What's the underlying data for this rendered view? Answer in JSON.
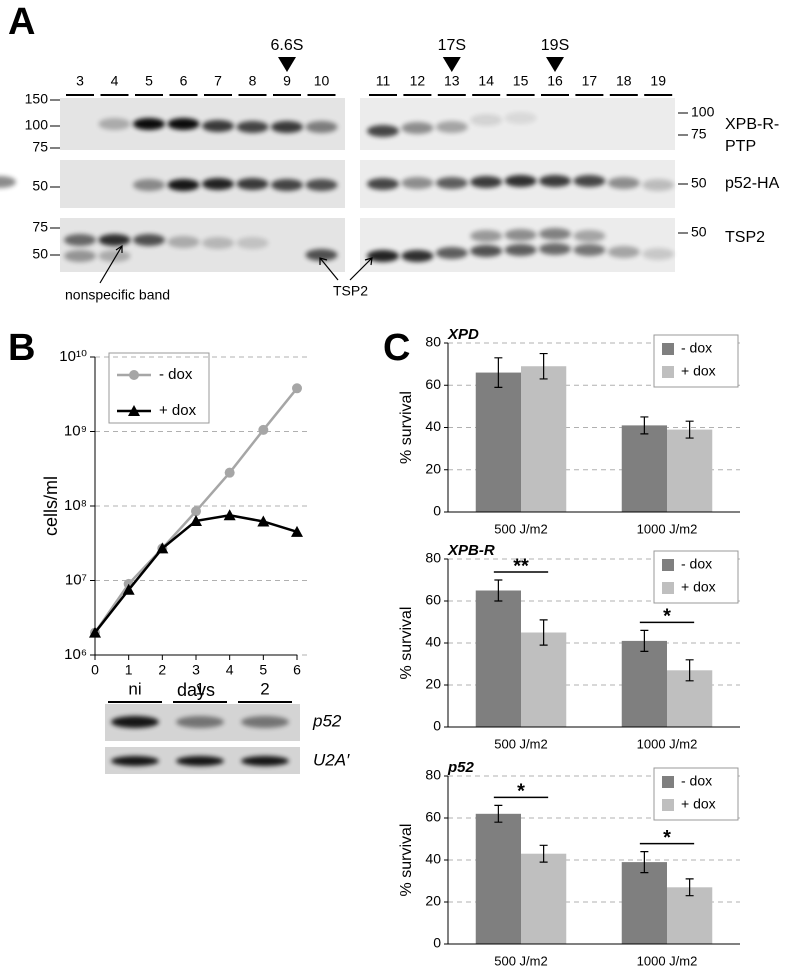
{
  "panel_labels": [
    "A",
    "B",
    "C"
  ],
  "panel_a": {
    "lanes_left": [
      "3",
      "4",
      "5",
      "6",
      "7",
      "8",
      "9",
      "10"
    ],
    "lanes_right": [
      "11",
      "12",
      "13",
      "14",
      "15",
      "16",
      "17",
      "18",
      "19"
    ],
    "sedimentation_markers": [
      "6.6S",
      "17S",
      "19S"
    ],
    "mw_left": [
      [
        "150",
        "100",
        "75"
      ],
      [
        "50"
      ],
      [
        "75",
        "50"
      ]
    ],
    "mw_right": [
      [
        "100",
        "75"
      ],
      [
        "50"
      ],
      [
        "50"
      ]
    ],
    "blot_labels": [
      [
        "XPB-R-",
        "PTP"
      ],
      [
        "p52-HA"
      ],
      [
        "TSP2"
      ]
    ],
    "annotations": [
      "nonspecific band",
      "TSP2"
    ]
  },
  "panel_b_blot": {
    "lanes": [
      "ni",
      "1",
      "2"
    ],
    "labels": [
      "p52",
      "U2A′"
    ]
  },
  "chart_data": [
    {
      "type": "line",
      "xlabel": "days",
      "ylabel": "cells/ml",
      "log_y": true,
      "grid": true,
      "legend": "upper left",
      "x": [
        0,
        1,
        2,
        3,
        4,
        5,
        6
      ],
      "xlim": [
        0,
        6
      ],
      "xticks": [
        0,
        1,
        2,
        3,
        4,
        5,
        6
      ],
      "ylim": [
        1000000,
        10000000000
      ],
      "yticks": [
        {
          "value": 1000000,
          "label": "10⁶"
        },
        {
          "value": 10000000,
          "label": "10⁷"
        },
        {
          "value": 100000000,
          "label": "10⁸"
        },
        {
          "value": 1000000000,
          "label": "10⁹"
        },
        {
          "value": 10000000000,
          "label": "10¹⁰"
        }
      ],
      "series": [
        {
          "name": "- dox",
          "color": "#a6a6a6",
          "marker": "o",
          "values": [
            2000000,
            9000000,
            27000000,
            85000000,
            280000000,
            1050000000,
            3800000000
          ]
        },
        {
          "name": "+ dox",
          "color": "#000000",
          "marker": "^",
          "values": [
            2000000,
            7500000,
            27000000,
            63000000,
            75000000,
            62000000,
            45000000
          ]
        }
      ]
    },
    {
      "type": "bar",
      "title": "XPD",
      "ylabel": "% survival",
      "grid": true,
      "legend": "upper right",
      "categories": [
        "500 J/m2",
        "1000 J/m2"
      ],
      "ylim": [
        0,
        80
      ],
      "yticks": [
        0,
        20,
        40,
        60,
        80
      ],
      "annotations": [
        null,
        null
      ],
      "series": [
        {
          "name": "- dox",
          "color": "#7f7f7f",
          "values": [
            66,
            41
          ],
          "errors": [
            7,
            4
          ]
        },
        {
          "name": "+ dox",
          "color": "#bfbfbf",
          "values": [
            69,
            39
          ],
          "errors": [
            6,
            4
          ]
        }
      ]
    },
    {
      "type": "bar",
      "title": "XPB-R",
      "ylabel": "% survival",
      "grid": true,
      "legend": "upper right",
      "categories": [
        "500 J/m2",
        "1000 J/m2"
      ],
      "ylim": [
        0,
        80
      ],
      "yticks": [
        0,
        20,
        40,
        60,
        80
      ],
      "annotations": [
        "**",
        "*"
      ],
      "series": [
        {
          "name": "- dox",
          "color": "#7f7f7f",
          "values": [
            65,
            41
          ],
          "errors": [
            5,
            5
          ]
        },
        {
          "name": "+ dox",
          "color": "#bfbfbf",
          "values": [
            45,
            27
          ],
          "errors": [
            6,
            5
          ]
        }
      ]
    },
    {
      "type": "bar",
      "title": "p52",
      "ylabel": "% survival",
      "grid": true,
      "legend": "upper right",
      "categories": [
        "500 J/m2",
        "1000 J/m2"
      ],
      "ylim": [
        0,
        80
      ],
      "yticks": [
        0,
        20,
        40,
        60,
        80
      ],
      "annotations": [
        "*",
        "*"
      ],
      "series": [
        {
          "name": "- dox",
          "color": "#7f7f7f",
          "values": [
            62,
            39
          ],
          "errors": [
            4,
            5
          ]
        },
        {
          "name": "+ dox",
          "color": "#bfbfbf",
          "values": [
            43,
            27
          ],
          "errors": [
            4,
            4
          ]
        }
      ]
    }
  ]
}
